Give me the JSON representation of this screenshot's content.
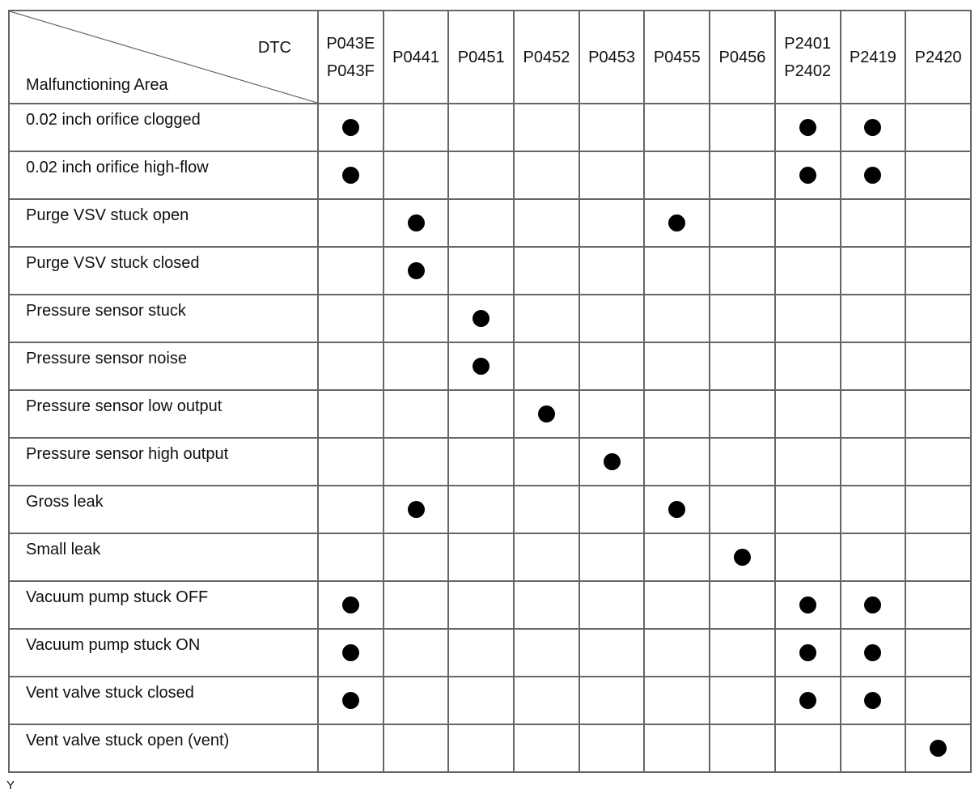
{
  "header": {
    "dtc_label": "DTC",
    "area_label": "Malfunctioning Area",
    "codes": [
      [
        "P043E",
        "P043F"
      ],
      [
        "P0441"
      ],
      [
        "P0451"
      ],
      [
        "P0452"
      ],
      [
        "P0453"
      ],
      [
        "P0455"
      ],
      [
        "P0456"
      ],
      [
        "P2401",
        "P2402"
      ],
      [
        "P2419"
      ],
      [
        "P2420"
      ]
    ]
  },
  "mark_symbol": "filled-circle",
  "rows": [
    {
      "area": "0.02 inch orifice clogged",
      "marks": [
        "P043E/P043F",
        "P2401/P2402",
        "P2419"
      ]
    },
    {
      "area": "0.02 inch orifice high-flow",
      "marks": [
        "P043E/P043F",
        "P2401/P2402",
        "P2419"
      ]
    },
    {
      "area": "Purge VSV stuck open",
      "marks": [
        "P0441",
        "P0455"
      ]
    },
    {
      "area": "Purge VSV stuck closed",
      "marks": [
        "P0441"
      ]
    },
    {
      "area": "Pressure sensor stuck",
      "marks": [
        "P0451"
      ]
    },
    {
      "area": "Pressure sensor noise",
      "marks": [
        "P0451"
      ]
    },
    {
      "area": "Pressure sensor low output",
      "marks": [
        "P0452"
      ]
    },
    {
      "area": "Pressure sensor high output",
      "marks": [
        "P0453"
      ]
    },
    {
      "area": "Gross leak",
      "marks": [
        "P0441",
        "P0455"
      ]
    },
    {
      "area": "Small leak",
      "marks": [
        "P0456"
      ]
    },
    {
      "area": "Vacuum pump stuck OFF",
      "marks": [
        "P043E/P043F",
        "P2401/P2402",
        "P2419"
      ]
    },
    {
      "area": "Vacuum pump stuck ON",
      "marks": [
        "P043E/P043F",
        "P2401/P2402",
        "P2419"
      ]
    },
    {
      "area": "Vent valve stuck closed",
      "marks": [
        "P043E/P043F",
        "P2401/P2402",
        "P2419"
      ]
    },
    {
      "area": "Vent valve stuck open (vent)",
      "marks": [
        "P2420"
      ]
    }
  ],
  "footnote": "Y"
}
